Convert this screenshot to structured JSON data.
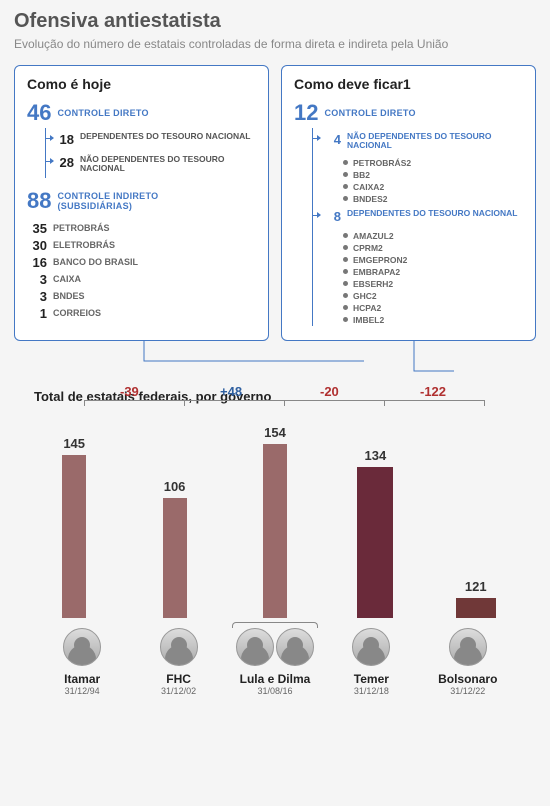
{
  "header": {
    "title": "Ofensiva antiestatista",
    "subtitle": "Evolução do número de estatais controladas de forma direta e indireta pela União"
  },
  "box_left": {
    "title": "Como é hoje",
    "group1": {
      "num": "46",
      "label": "CONTROLE DIRETO",
      "sub1_num": "18",
      "sub1_label": "DEPENDENTES DO TESOURO NACIONAL",
      "sub2_num": "28",
      "sub2_label": "NÃO DEPENDENTES DO TESOURO NACIONAL"
    },
    "group2": {
      "num": "88",
      "label1": "CONTROLE INDIRETO",
      "label2": "(SUBSIDIÁRIAS)",
      "items": [
        {
          "n": "35",
          "l": "PETROBRÁS"
        },
        {
          "n": "30",
          "l": "ELETROBRÁS"
        },
        {
          "n": "16",
          "l": "BANCO DO BRASIL"
        },
        {
          "n": "3",
          "l": "CAIXA"
        },
        {
          "n": "3",
          "l": "BNDES"
        },
        {
          "n": "1",
          "l": "CORREIOS"
        }
      ]
    }
  },
  "box_right": {
    "title": "Como deve ficar1",
    "group1": {
      "num": "12",
      "label": "CONTROLE DIRETO",
      "sub1_num": "4",
      "sub1_label": "NÃO DEPENDENTES DO TESOURO NACIONAL",
      "sub1_items": [
        "PETROBRÁS2",
        "BB2",
        "CAIXA2",
        "BNDES2"
      ],
      "sub2_num": "8",
      "sub2_label": "DEPENDENTES DO TESOURO NACIONAL",
      "sub2_items": [
        "AMAZUL2",
        "CPRM2",
        "EMGEPRON2",
        "EMBRAPA2",
        "EBSERH2",
        "GHC2",
        "HCPA2",
        "IMBEL2"
      ]
    }
  },
  "chart": {
    "title": "Total de estatais federais, por governo",
    "max": 160,
    "colors": {
      "bar_default": "#9a6a6a",
      "bar_temer": "#6a2a3a",
      "bar_bolsonaro": "#703838"
    },
    "bars": [
      {
        "name": "Itamar",
        "date": "31/12/94",
        "value": 145,
        "color": "bar_default"
      },
      {
        "name": "FHC",
        "date": "31/12/02",
        "value": 106,
        "color": "bar_default"
      },
      {
        "name": "Lula e Dilma",
        "date": "31/08/16",
        "value": 154,
        "color": "bar_default",
        "double": true
      },
      {
        "name": "Temer",
        "date": "31/12/18",
        "value": 134,
        "color": "bar_temer"
      },
      {
        "name": "Bolsonaro",
        "date": "31/12/22",
        "value": 12,
        "display_value": "121",
        "short": true,
        "color": "bar_bolsonaro"
      }
    ],
    "deltas": [
      {
        "between": [
          0,
          1
        ],
        "text": "-39",
        "cls": "neg"
      },
      {
        "between": [
          1,
          2
        ],
        "text": "+48",
        "cls": "pos"
      },
      {
        "between": [
          2,
          3
        ],
        "text": "-20",
        "cls": "neg"
      },
      {
        "between": [
          3,
          4
        ],
        "text": "-122",
        "cls": "neg"
      }
    ]
  }
}
